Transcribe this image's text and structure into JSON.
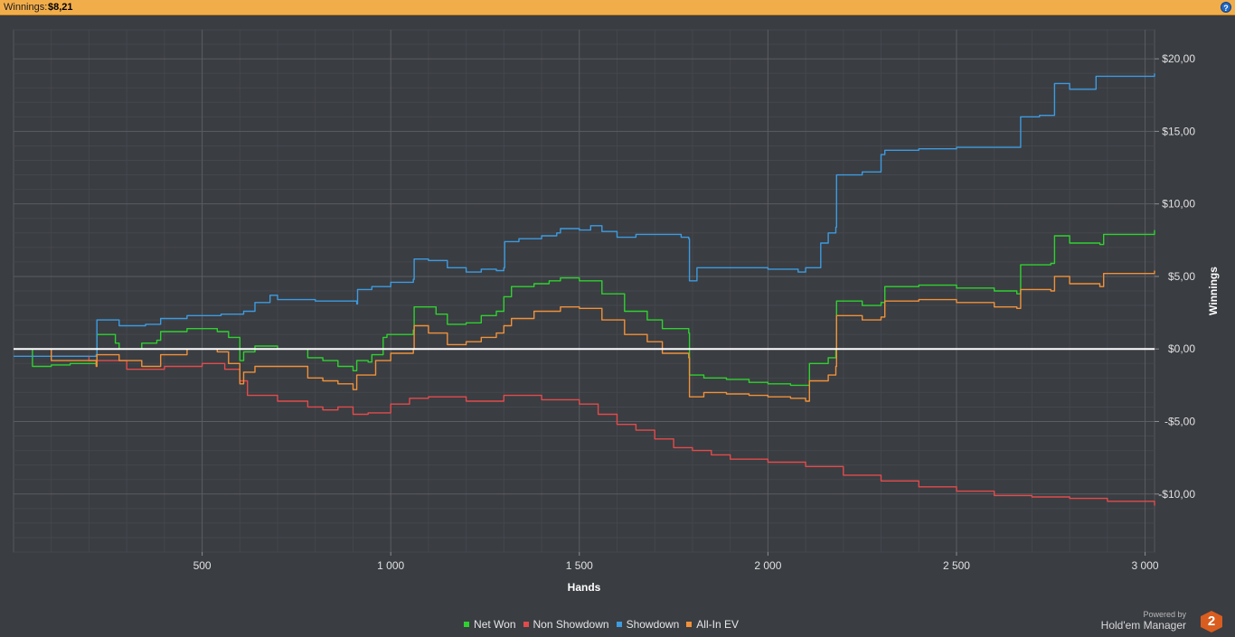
{
  "header": {
    "label": "Winnings:",
    "value": "$8,21",
    "help_icon": "question-mark-icon",
    "help_glyph": "?"
  },
  "colors": {
    "background": "#3a3d42",
    "header": "#f2ad4b",
    "net_won": "#2fd12f",
    "non_showdown": "#e24b4b",
    "showdown": "#3d9be0",
    "all_in_ev": "#f0913a",
    "zero_line": "#ffffff"
  },
  "branding": {
    "powered": "Powered by",
    "name": "Hold'em Manager",
    "logo_text": "2"
  },
  "chart_data": {
    "type": "line",
    "xlabel": "Hands",
    "ylabel": "Winnings",
    "xlim": [
      0,
      3025
    ],
    "ylim": [
      -14,
      22
    ],
    "xticks": [
      500,
      1000,
      1500,
      2000,
      2500,
      3000
    ],
    "xtick_labels": [
      "500",
      "1 000",
      "1 500",
      "2 000",
      "2 500",
      "3 000"
    ],
    "yticks": [
      -10,
      -5,
      0,
      5,
      10,
      15,
      20
    ],
    "ytick_labels": [
      "-$10,00",
      "-$5,00",
      "$0,00",
      "$5,00",
      "$10,00",
      "$15,00",
      "$20,00"
    ],
    "grid": true,
    "legend": "bottom-center",
    "series": [
      {
        "name": "Net Won",
        "color": "#2fd12f",
        "x": [
          0,
          50,
          100,
          150,
          219,
          221,
          270,
          280,
          340,
          380,
          390,
          460,
          540,
          570,
          600,
          610,
          640,
          700,
          780,
          820,
          860,
          900,
          910,
          940,
          950,
          980,
          990,
          1060,
          1062,
          1120,
          1150,
          1200,
          1240,
          1280,
          1300,
          1320,
          1380,
          1420,
          1450,
          1500,
          1560,
          1620,
          1680,
          1720,
          1790,
          1792,
          1830,
          1890,
          1950,
          2000,
          2060,
          2100,
          2110,
          2160,
          2180,
          2182,
          2250,
          2300,
          2310,
          2400,
          2500,
          2600,
          2660,
          2670,
          2750,
          2760,
          2800,
          2880,
          2890,
          3025
        ],
        "y": [
          0,
          -1.2,
          -1.1,
          -1.0,
          -1.1,
          1.0,
          0.4,
          0.0,
          0.4,
          0.6,
          1.2,
          1.4,
          1.2,
          0.8,
          -0.8,
          -0.2,
          0.2,
          0.0,
          -0.6,
          -0.8,
          -1.2,
          -1.5,
          -0.8,
          -0.9,
          -0.4,
          0.8,
          1.0,
          1.3,
          2.9,
          2.4,
          1.7,
          1.8,
          2.3,
          2.6,
          3.6,
          4.3,
          4.5,
          4.7,
          4.9,
          4.7,
          3.8,
          2.6,
          2.0,
          1.4,
          1.1,
          -1.8,
          -2.0,
          -2.1,
          -2.3,
          -2.4,
          -2.5,
          -2.5,
          -1.0,
          -0.6,
          0.0,
          3.3,
          3.0,
          3.2,
          4.3,
          4.4,
          4.2,
          4.0,
          3.8,
          5.8,
          5.9,
          7.8,
          7.3,
          7.2,
          7.9,
          8.2
        ]
      },
      {
        "name": "Non Showdown",
        "color": "#e24b4b",
        "x": [
          0,
          100,
          200,
          300,
          400,
          500,
          560,
          600,
          620,
          700,
          780,
          820,
          860,
          900,
          940,
          1000,
          1050,
          1100,
          1200,
          1300,
          1400,
          1500,
          1550,
          1600,
          1650,
          1700,
          1750,
          1800,
          1850,
          1900,
          2000,
          2100,
          2200,
          2300,
          2400,
          2500,
          2600,
          2700,
          2800,
          2900,
          3025
        ],
        "y": [
          0,
          -0.5,
          -0.8,
          -1.4,
          -1.2,
          -1.0,
          -1.4,
          -2.2,
          -3.2,
          -3.6,
          -4.0,
          -4.2,
          -4.0,
          -4.5,
          -4.4,
          -3.8,
          -3.4,
          -3.3,
          -3.6,
          -3.2,
          -3.5,
          -3.8,
          -4.5,
          -5.2,
          -5.6,
          -6.2,
          -6.8,
          -7.0,
          -7.3,
          -7.6,
          -7.8,
          -8.1,
          -8.7,
          -9.1,
          -9.5,
          -9.8,
          -10.1,
          -10.2,
          -10.3,
          -10.5,
          -10.8
        ]
      },
      {
        "name": "Showdown",
        "color": "#3d9be0",
        "x": [
          0,
          219,
          221,
          280,
          350,
          390,
          460,
          550,
          610,
          640,
          680,
          700,
          800,
          910,
          912,
          950,
          1000,
          1060,
          1062,
          1100,
          1150,
          1200,
          1240,
          1280,
          1300,
          1302,
          1340,
          1400,
          1440,
          1450,
          1500,
          1530,
          1560,
          1600,
          1650,
          1700,
          1770,
          1790,
          1792,
          1810,
          1812,
          1900,
          2000,
          2080,
          2100,
          2140,
          2160,
          2180,
          2182,
          2250,
          2300,
          2310,
          2400,
          2500,
          2660,
          2670,
          2720,
          2750,
          2760,
          2800,
          2850,
          2870,
          3025
        ],
        "y": [
          -0.5,
          -0.4,
          2.0,
          1.6,
          1.7,
          2.1,
          2.3,
          2.4,
          2.6,
          3.2,
          3.7,
          3.4,
          3.3,
          3.1,
          4.1,
          4.3,
          4.6,
          4.8,
          6.2,
          6.1,
          5.6,
          5.3,
          5.5,
          5.4,
          5.6,
          7.4,
          7.6,
          7.8,
          8.0,
          8.3,
          8.2,
          8.5,
          8.1,
          7.7,
          7.9,
          7.9,
          7.7,
          7.6,
          4.7,
          4.7,
          5.6,
          5.6,
          5.5,
          5.3,
          5.6,
          7.3,
          8.0,
          8.4,
          12.0,
          12.2,
          13.4,
          13.7,
          13.8,
          13.9,
          13.9,
          16.0,
          16.1,
          16.1,
          18.3,
          17.9,
          17.9,
          18.8,
          19.0
        ]
      },
      {
        "name": "All-In EV",
        "color": "#f0913a",
        "x": [
          0,
          100,
          219,
          221,
          280,
          340,
          390,
          460,
          540,
          570,
          600,
          610,
          640,
          700,
          780,
          820,
          860,
          900,
          910,
          960,
          1000,
          1060,
          1062,
          1100,
          1150,
          1200,
          1240,
          1280,
          1300,
          1320,
          1380,
          1450,
          1500,
          1560,
          1620,
          1680,
          1720,
          1790,
          1792,
          1830,
          1890,
          1950,
          2000,
          2060,
          2100,
          2110,
          2160,
          2180,
          2182,
          2250,
          2300,
          2310,
          2400,
          2500,
          2600,
          2660,
          2670,
          2750,
          2760,
          2800,
          2880,
          2890,
          3025
        ],
        "y": [
          0,
          -0.8,
          -1.2,
          -0.4,
          -0.8,
          -1.2,
          -0.4,
          0.0,
          -0.2,
          -1.0,
          -2.4,
          -1.6,
          -1.2,
          -1.2,
          -2.0,
          -2.2,
          -2.4,
          -2.8,
          -1.8,
          -0.8,
          -0.3,
          0.0,
          1.6,
          1.1,
          0.3,
          0.5,
          0.8,
          1.1,
          1.6,
          2.1,
          2.6,
          2.9,
          2.8,
          2.0,
          1.0,
          0.5,
          -0.3,
          -0.6,
          -3.3,
          -3.0,
          -3.1,
          -3.2,
          -3.3,
          -3.4,
          -3.6,
          -2.2,
          -1.8,
          -1.2,
          2.3,
          2.0,
          2.2,
          3.3,
          3.4,
          3.2,
          2.9,
          2.8,
          4.1,
          4.0,
          5.0,
          4.5,
          4.3,
          5.2,
          5.4
        ]
      }
    ]
  }
}
